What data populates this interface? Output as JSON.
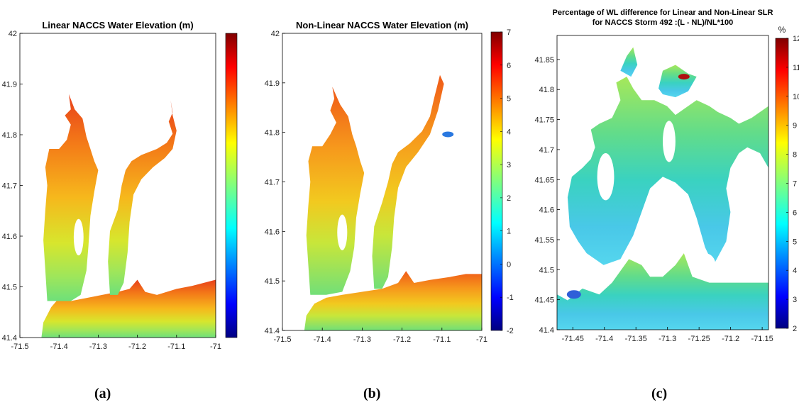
{
  "figure": {
    "panel_letters": [
      "(a)",
      "(b)",
      "(c)"
    ]
  },
  "chart_data": [
    {
      "type": "heatmap",
      "panel": "(a)",
      "title": "Linear NACCS Water Elevation (m)",
      "xlabel": "",
      "ylabel": "",
      "xlim": [
        -71.5,
        -71.0
      ],
      "ylim": [
        41.4,
        42.0
      ],
      "xticks": [
        -71.5,
        -71.4,
        -71.3,
        -71.2,
        -71.1,
        -71
      ],
      "yticks": [
        41.4,
        41.5,
        41.6,
        41.7,
        41.8,
        41.9,
        42
      ],
      "xtick_labels": [
        "-71.5",
        "-71.4",
        "-71.3",
        "-71.2",
        "-71.1",
        "-71"
      ],
      "ytick_labels": [
        "41.4",
        "41.5",
        "41.6",
        "41.7",
        "41.8",
        "41.9",
        "42"
      ],
      "colorbar": {
        "min": -2,
        "max": 7,
        "tick_labels": [],
        "unit": ""
      },
      "colormap": "jet",
      "grid": false
    },
    {
      "type": "heatmap",
      "panel": "(b)",
      "title": "Non-Linear NACCS Water Elevation (m)",
      "xlabel": "",
      "ylabel": "",
      "xlim": [
        -71.5,
        -71.0
      ],
      "ylim": [
        41.4,
        42.0
      ],
      "xticks": [
        -71.5,
        -71.4,
        -71.3,
        -71.2,
        -71.1,
        -71
      ],
      "yticks": [
        41.4,
        41.5,
        41.6,
        41.7,
        41.8,
        41.9,
        42
      ],
      "xtick_labels": [
        "-71.5",
        "-71.4",
        "-71.3",
        "-71.2",
        "-71.1",
        "-71"
      ],
      "ytick_labels": [
        "41.4",
        "41.5",
        "41.6",
        "41.7",
        "41.8",
        "41.9",
        "42"
      ],
      "colorbar": {
        "min": -2,
        "max": 7,
        "ticks": [
          -2,
          -1,
          0,
          1,
          2,
          3,
          4,
          5,
          6,
          7
        ],
        "tick_labels": [
          "-2",
          "-1",
          "0",
          "1",
          "2",
          "3",
          "4",
          "5",
          "6",
          "7"
        ],
        "unit": ""
      },
      "colormap": "jet",
      "grid": false
    },
    {
      "type": "heatmap",
      "panel": "(c)",
      "title": "Percentage of WL difference for Linear and Non-Linear SLR",
      "subtitle": "for NACCS Storm 492 :(L - NL)/NL*100",
      "xlabel": "",
      "ylabel": "",
      "xlim": [
        -71.475,
        -71.14
      ],
      "ylim": [
        41.4,
        41.89
      ],
      "xticks": [
        -71.45,
        -71.4,
        -71.35,
        -71.3,
        -71.25,
        -71.2,
        -71.15
      ],
      "yticks": [
        41.4,
        41.45,
        41.5,
        41.55,
        41.6,
        41.65,
        41.7,
        41.75,
        41.8,
        41.85
      ],
      "xtick_labels": [
        "-71.45",
        "-71.4",
        "-71.35",
        "-71.3",
        "-71.25",
        "-71.2",
        "-71.15"
      ],
      "ytick_labels": [
        "41.4",
        "41.45",
        "41.5",
        "41.55",
        "41.6",
        "41.65",
        "41.7",
        "41.75",
        "41.8",
        "41.85"
      ],
      "colorbar": {
        "min": 2,
        "max": 12,
        "ticks": [
          2,
          3,
          4,
          5,
          6,
          7,
          8,
          9,
          10,
          11,
          12
        ],
        "tick_labels": [
          "2",
          "3",
          "4",
          "5",
          "6",
          "7",
          "8",
          "9",
          "10",
          "11",
          "12"
        ],
        "unit": "%"
      },
      "colormap": "jet",
      "grid": false
    }
  ]
}
